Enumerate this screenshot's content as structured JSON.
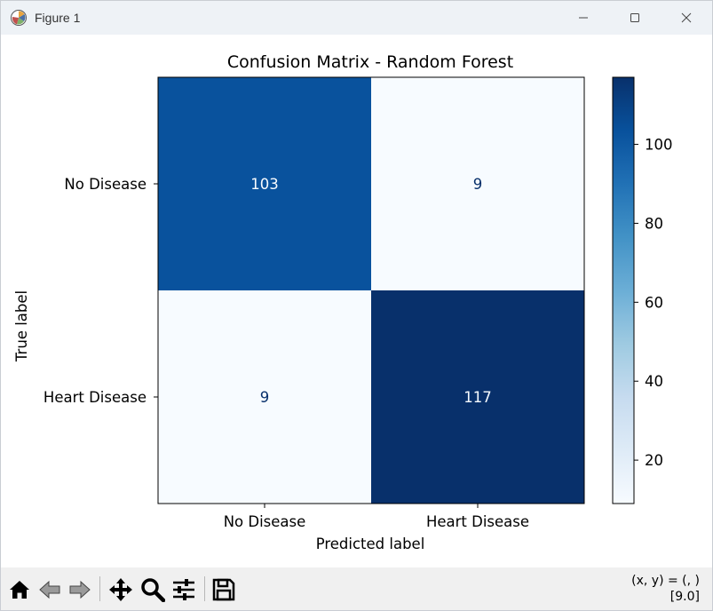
{
  "window": {
    "title": "Figure 1",
    "controls": [
      "minimize",
      "maximize",
      "close"
    ]
  },
  "chart_data": {
    "type": "heatmap",
    "title": "Confusion Matrix - Random Forest",
    "xlabel": "Predicted label",
    "ylabel": "True label",
    "x_categories": [
      "No Disease",
      "Heart Disease"
    ],
    "y_categories": [
      "No Disease",
      "Heart Disease"
    ],
    "matrix": [
      [
        103,
        9
      ],
      [
        9,
        117
      ]
    ],
    "colormap": "Blues",
    "colorbar": {
      "min": 9,
      "max": 117,
      "ticks": [
        20,
        40,
        60,
        80,
        100
      ]
    },
    "colors": {
      "low": "#f7fbff",
      "high": "#08306b"
    }
  },
  "toolbar": {
    "buttons": [
      "home-icon",
      "back-icon",
      "forward-icon",
      "pan-icon",
      "zoom-icon",
      "configure-subplots-icon",
      "save-icon"
    ],
    "coords_line1": "(x, y) = (, )",
    "coords_line2": "[9.0]"
  }
}
